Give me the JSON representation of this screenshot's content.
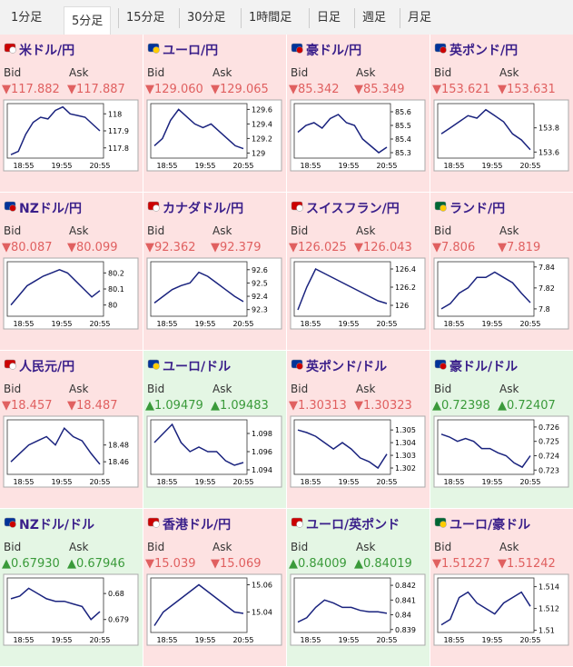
{
  "tabs": [
    "1分足",
    "5分足",
    "15分足",
    "30分足",
    "1時間足",
    "日足",
    "週足",
    "月足"
  ],
  "active_tab": 1,
  "bid_label": "Bid",
  "ask_label": "Ask",
  "time_labels": [
    "18:55",
    "19:55",
    "20:55"
  ],
  "pairs": [
    {
      "name": "米ドル/円",
      "bid": "▼117.882",
      "ask": "▼117.887",
      "bg": "#fde2e2",
      "value_color": "#e06060",
      "ylim": [
        117.74,
        118.06
      ],
      "yticks": [
        117.8,
        117.9,
        118
      ],
      "prices": [
        117.76,
        117.78,
        117.88,
        117.95,
        117.98,
        117.97,
        118.02,
        118.04,
        118.0,
        117.99,
        117.98,
        117.94,
        117.9
      ]
    },
    {
      "name": "ユーロ/円",
      "bid": "▼129.060",
      "ask": "▼129.065",
      "bg": "#fde2e2",
      "value_color": "#e06060",
      "ylim": [
        128.93,
        129.68
      ],
      "yticks": [
        129,
        129.2,
        129.4,
        129.6
      ],
      "prices": [
        129.1,
        129.2,
        129.45,
        129.6,
        129.5,
        129.4,
        129.35,
        129.4,
        129.3,
        129.2,
        129.1,
        129.06
      ]
    },
    {
      "name": "豪ドル/円",
      "bid": "▼85.342",
      "ask": "▼85.349",
      "bg": "#fde2e2",
      "value_color": "#e06060",
      "ylim": [
        85.26,
        85.66
      ],
      "yticks": [
        85.3,
        85.4,
        85.5,
        85.6
      ],
      "prices": [
        85.45,
        85.5,
        85.52,
        85.48,
        85.55,
        85.58,
        85.52,
        85.5,
        85.4,
        85.35,
        85.3,
        85.34
      ]
    },
    {
      "name": "英ポンド/円",
      "bid": "▼153.621",
      "ask": "▼153.631",
      "bg": "#fde2e2",
      "value_color": "#e06060",
      "ylim": [
        153.55,
        154.0
      ],
      "yticks": [
        153.6,
        153.8
      ],
      "prices": [
        153.75,
        153.8,
        153.85,
        153.9,
        153.88,
        153.95,
        153.9,
        153.85,
        153.75,
        153.7,
        153.62
      ]
    },
    {
      "name": "NZドル/円",
      "bid": "▼80.087",
      "ask": "▼80.099",
      "bg": "#fde2e2",
      "value_color": "#e06060",
      "ylim": [
        79.93,
        80.27
      ],
      "yticks": [
        80,
        80.1,
        80.2
      ],
      "prices": [
        80.0,
        80.06,
        80.12,
        80.15,
        80.18,
        80.2,
        80.22,
        80.2,
        80.15,
        80.1,
        80.05,
        80.09
      ]
    },
    {
      "name": "カナダドル/円",
      "bid": "▼92.362",
      "ask": "▼92.379",
      "bg": "#fde2e2",
      "value_color": "#e06060",
      "ylim": [
        92.25,
        92.66
      ],
      "yticks": [
        92.3,
        92.4,
        92.5,
        92.6
      ],
      "prices": [
        92.35,
        92.4,
        92.45,
        92.48,
        92.5,
        92.58,
        92.55,
        92.5,
        92.45,
        92.4,
        92.36
      ]
    },
    {
      "name": "スイスフラン/円",
      "bid": "▼126.025",
      "ask": "▼126.043",
      "bg": "#fde2e2",
      "value_color": "#e06060",
      "ylim": [
        125.88,
        126.48
      ],
      "yticks": [
        126,
        126.2,
        126.4
      ],
      "prices": [
        125.95,
        126.2,
        126.4,
        126.35,
        126.3,
        126.25,
        126.2,
        126.15,
        126.1,
        126.05,
        126.02
      ]
    },
    {
      "name": "ランド/円",
      "bid": "▼7.806",
      "ask": "▼7.819",
      "bg": "#fde2e2",
      "value_color": "#e06060",
      "ylim": [
        7.793,
        7.845
      ],
      "yticks": [
        7.8,
        7.82,
        7.84
      ],
      "prices": [
        7.8,
        7.805,
        7.815,
        7.82,
        7.83,
        7.83,
        7.835,
        7.83,
        7.825,
        7.815,
        7.806
      ]
    },
    {
      "name": "人民元/円",
      "bid": "▼18.457",
      "ask": "▼18.487",
      "bg": "#fde2e2",
      "value_color": "#e06060",
      "ylim": [
        18.445,
        18.51
      ],
      "yticks": [
        18.46,
        18.48
      ],
      "prices": [
        18.46,
        18.47,
        18.48,
        18.485,
        18.49,
        18.48,
        18.5,
        18.49,
        18.485,
        18.47,
        18.457
      ]
    },
    {
      "name": "ユーロ/ドル",
      "bid": "▲1.09479",
      "ask": "▲1.09483",
      "bg": "#e4f6e4",
      "value_color": "#3a9a3a",
      "ylim": [
        1.0935,
        1.0995
      ],
      "yticks": [
        1.094,
        1.096,
        1.098
      ],
      "prices": [
        1.097,
        1.098,
        1.099,
        1.097,
        1.096,
        1.0965,
        1.096,
        1.096,
        1.095,
        1.0945,
        1.0948
      ]
    },
    {
      "name": "英ポンド/ドル",
      "bid": "▼1.30313",
      "ask": "▼1.30323",
      "bg": "#fde2e2",
      "value_color": "#e06060",
      "ylim": [
        1.3015,
        1.3058
      ],
      "yticks": [
        1.302,
        1.303,
        1.304,
        1.305
      ],
      "prices": [
        1.305,
        1.3048,
        1.3045,
        1.304,
        1.3035,
        1.304,
        1.3035,
        1.3028,
        1.3025,
        1.302,
        1.3031
      ]
    },
    {
      "name": "豪ドル/ドル",
      "bid": "▲0.72398",
      "ask": "▲0.72407",
      "bg": "#e4f6e4",
      "value_color": "#3a9a3a",
      "ylim": [
        0.7227,
        0.7265
      ],
      "yticks": [
        0.723,
        0.724,
        0.725,
        0.726
      ],
      "prices": [
        0.7255,
        0.7253,
        0.725,
        0.7252,
        0.725,
        0.7245,
        0.7245,
        0.7242,
        0.724,
        0.7235,
        0.7232,
        0.724
      ]
    },
    {
      "name": "NZドル/ドル",
      "bid": "▲0.67930",
      "ask": "▲0.67946",
      "bg": "#e4f6e4",
      "value_color": "#3a9a3a",
      "ylim": [
        0.6785,
        0.6806
      ],
      "yticks": [
        0.679,
        0.68
      ],
      "prices": [
        0.6798,
        0.6799,
        0.6802,
        0.68,
        0.6798,
        0.6797,
        0.6797,
        0.6796,
        0.6795,
        0.679,
        0.6793
      ]
    },
    {
      "name": "香港ドル/円",
      "bid": "▼15.039",
      "ask": "▼15.069",
      "bg": "#fde2e2",
      "value_color": "#e06060",
      "ylim": [
        15.025,
        15.065
      ],
      "yticks": [
        15.04,
        15.06
      ],
      "prices": [
        15.03,
        15.04,
        15.045,
        15.05,
        15.055,
        15.06,
        15.055,
        15.05,
        15.045,
        15.04,
        15.039
      ]
    },
    {
      "name": "ユーロ/英ポンド",
      "bid": "▲0.84009",
      "ask": "▲0.84019",
      "bg": "#e4f6e4",
      "value_color": "#3a9a3a",
      "ylim": [
        0.8388,
        0.8425
      ],
      "yticks": [
        0.839,
        0.84,
        0.841,
        0.842
      ],
      "prices": [
        0.8395,
        0.8398,
        0.8405,
        0.841,
        0.8408,
        0.8405,
        0.8405,
        0.8403,
        0.8402,
        0.8402,
        0.8401
      ]
    },
    {
      "name": "ユーロ/豪ドル",
      "bid": "▼1.51227",
      "ask": "▼1.51242",
      "bg": "#fde2e2",
      "value_color": "#e06060",
      "ylim": [
        1.5098,
        1.5148
      ],
      "yticks": [
        1.51,
        1.512,
        1.514
      ],
      "prices": [
        1.5105,
        1.511,
        1.513,
        1.5135,
        1.5125,
        1.512,
        1.5115,
        1.5125,
        1.513,
        1.5135,
        1.5122
      ]
    }
  ]
}
